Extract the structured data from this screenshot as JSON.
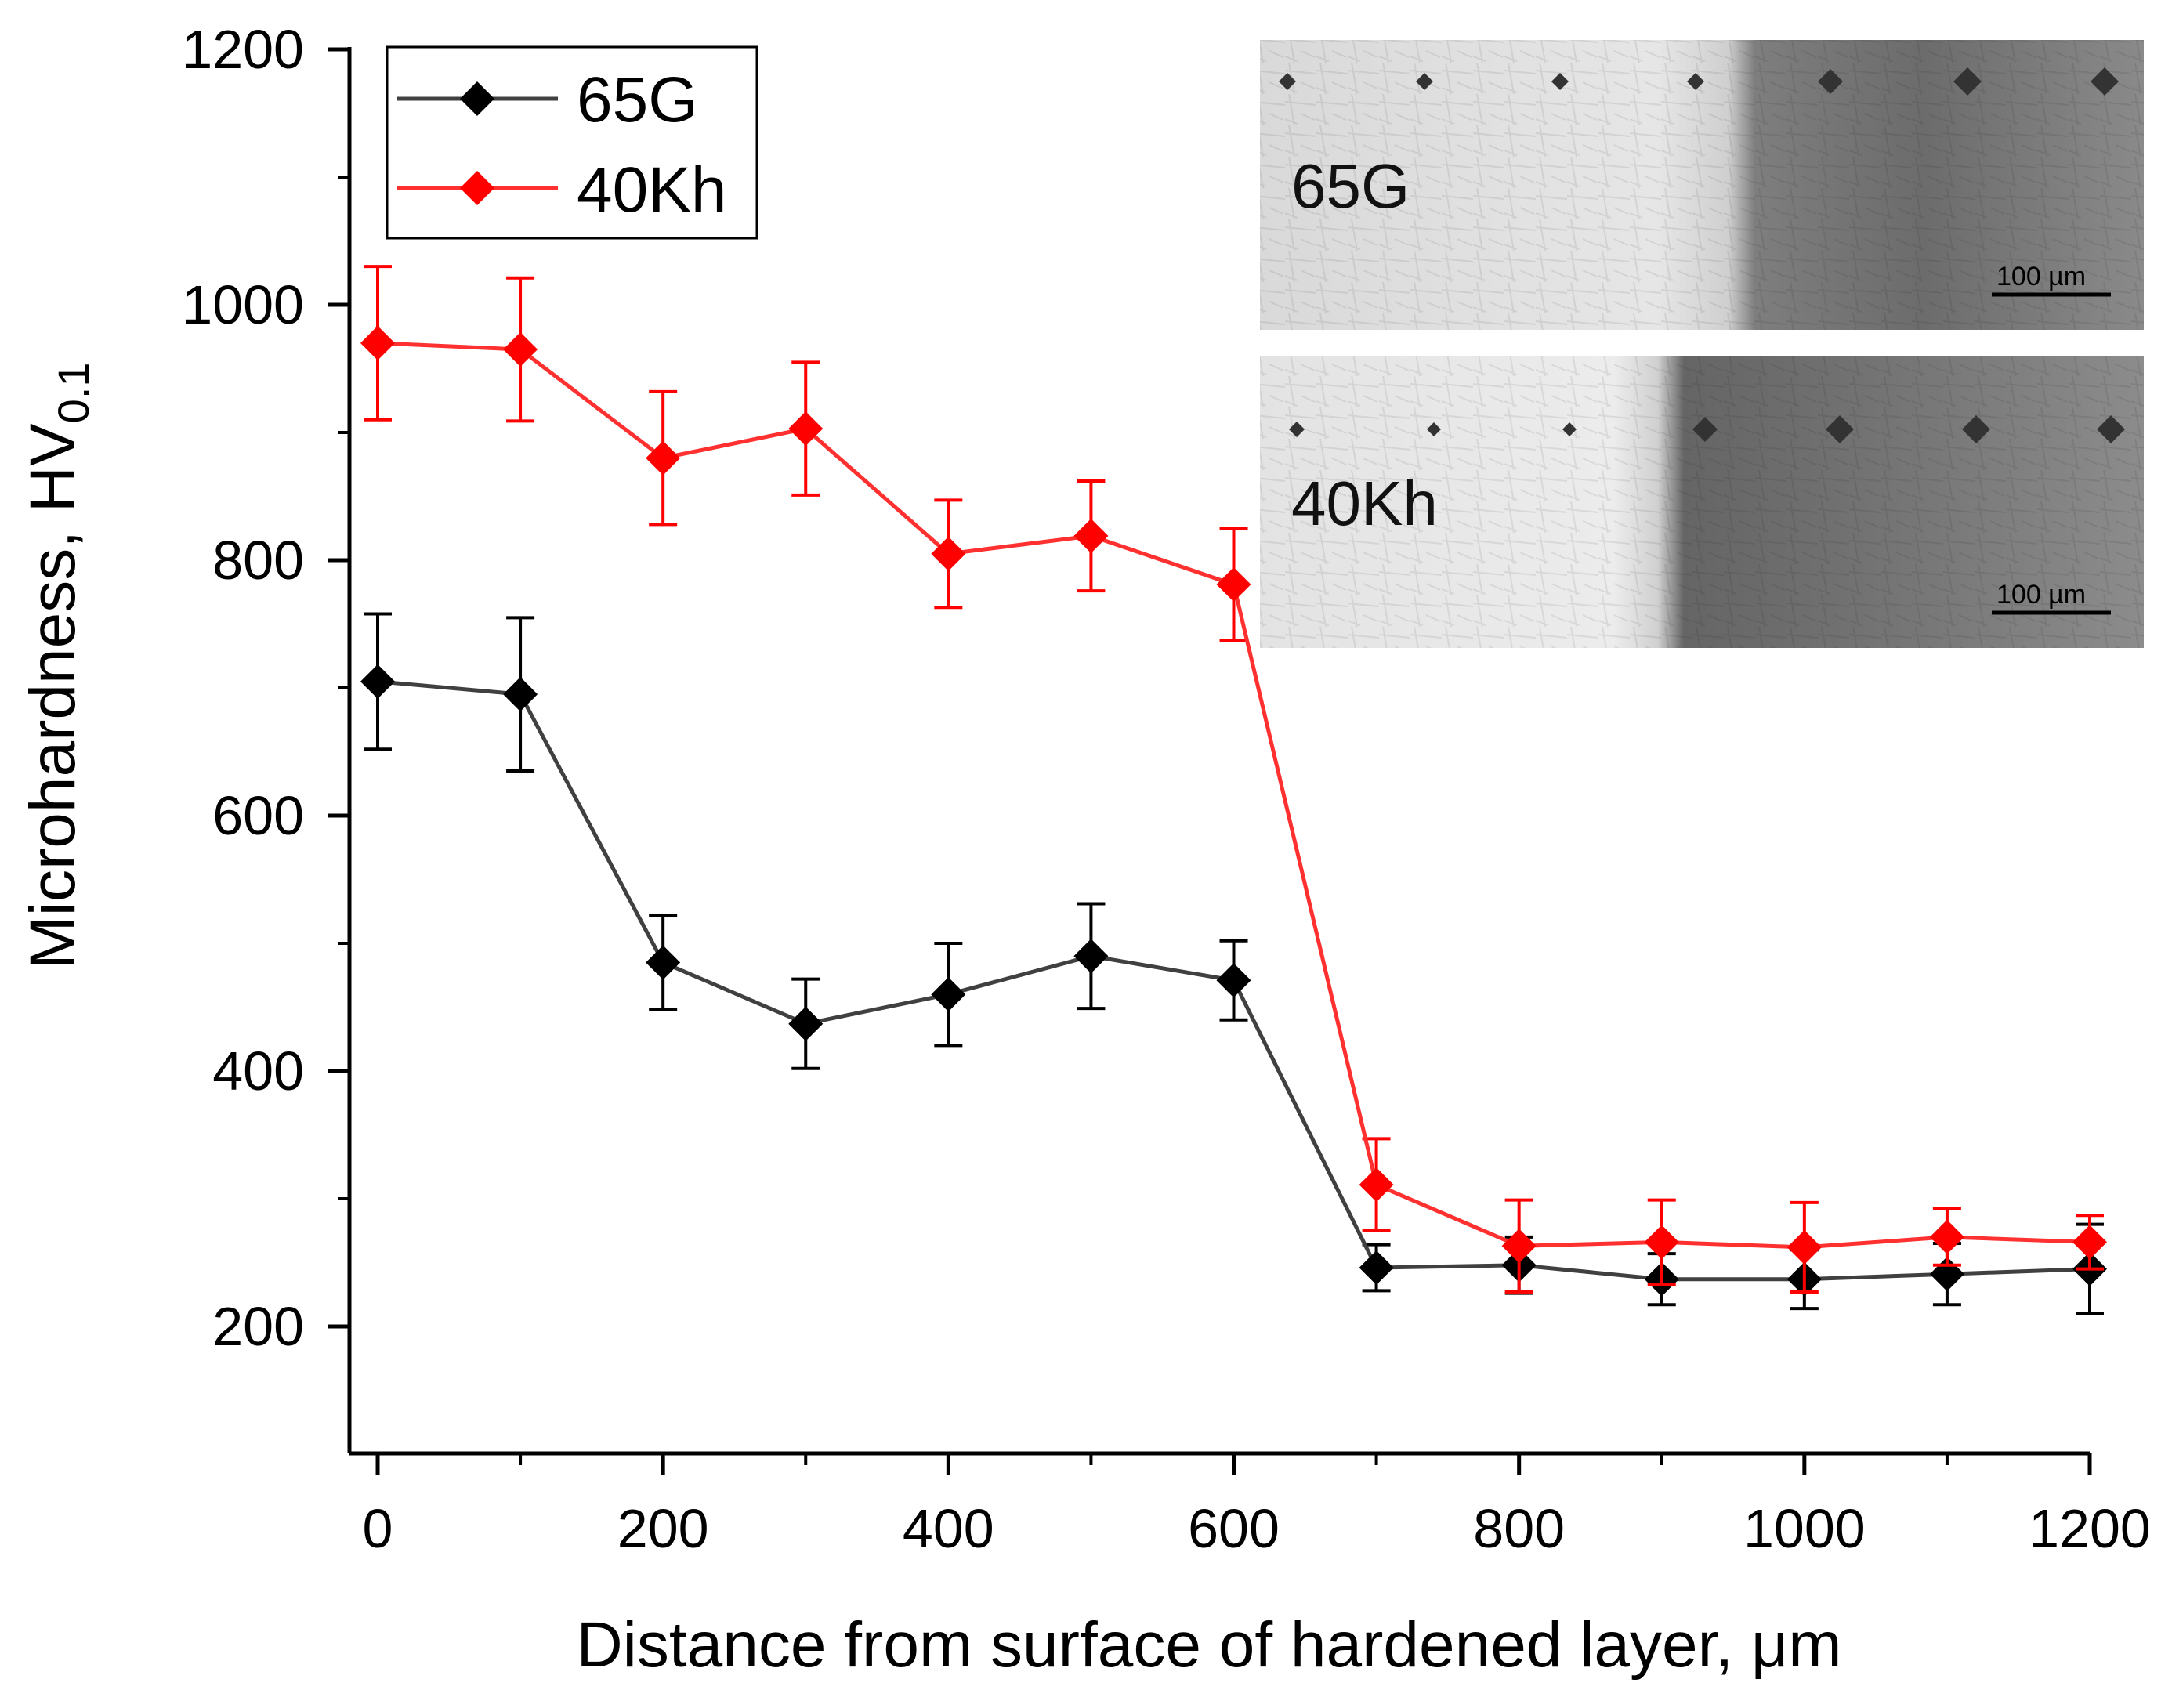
{
  "chart_data": {
    "type": "line",
    "title": "",
    "xlabel": "Distance from surface of hardened layer, μm",
    "ylabel": "Microhardness, HV",
    "ylabel_subscript": "0.1",
    "xlim": [
      -50,
      1200
    ],
    "ylim": [
      100,
      1200
    ],
    "x_ticks": [
      0,
      200,
      400,
      600,
      800,
      1000,
      1200
    ],
    "y_ticks": [
      200,
      400,
      600,
      800,
      1000,
      1200
    ],
    "x": [
      0,
      100,
      200,
      300,
      400,
      500,
      600,
      700,
      800,
      900,
      1000,
      1100,
      1200
    ],
    "legend_position": "top-left",
    "series": [
      {
        "name": "65G",
        "color": "#000000",
        "line_color": "#404040",
        "marker": "diamond",
        "values": [
          705,
          695,
          485,
          437,
          460,
          490,
          471,
          246,
          248,
          237,
          237,
          241,
          245
        ],
        "errors": [
          53,
          60,
          37,
          35,
          40,
          41,
          31,
          18,
          22,
          20,
          23,
          24,
          35
        ]
      },
      {
        "name": "40Kh",
        "color": "#ff0000",
        "line_color": "#ff3030",
        "marker": "diamond",
        "values": [
          970,
          965,
          880,
          903,
          805,
          819,
          781,
          311,
          263,
          266,
          262,
          270,
          266
        ],
        "errors": [
          60,
          56,
          52,
          52,
          42,
          43,
          44,
          36,
          36,
          33,
          35,
          22,
          21
        ]
      }
    ],
    "insets": [
      {
        "label": "65G",
        "scale_bar": "100 µm"
      },
      {
        "label": "40Kh",
        "scale_bar": "100 µm"
      }
    ]
  }
}
